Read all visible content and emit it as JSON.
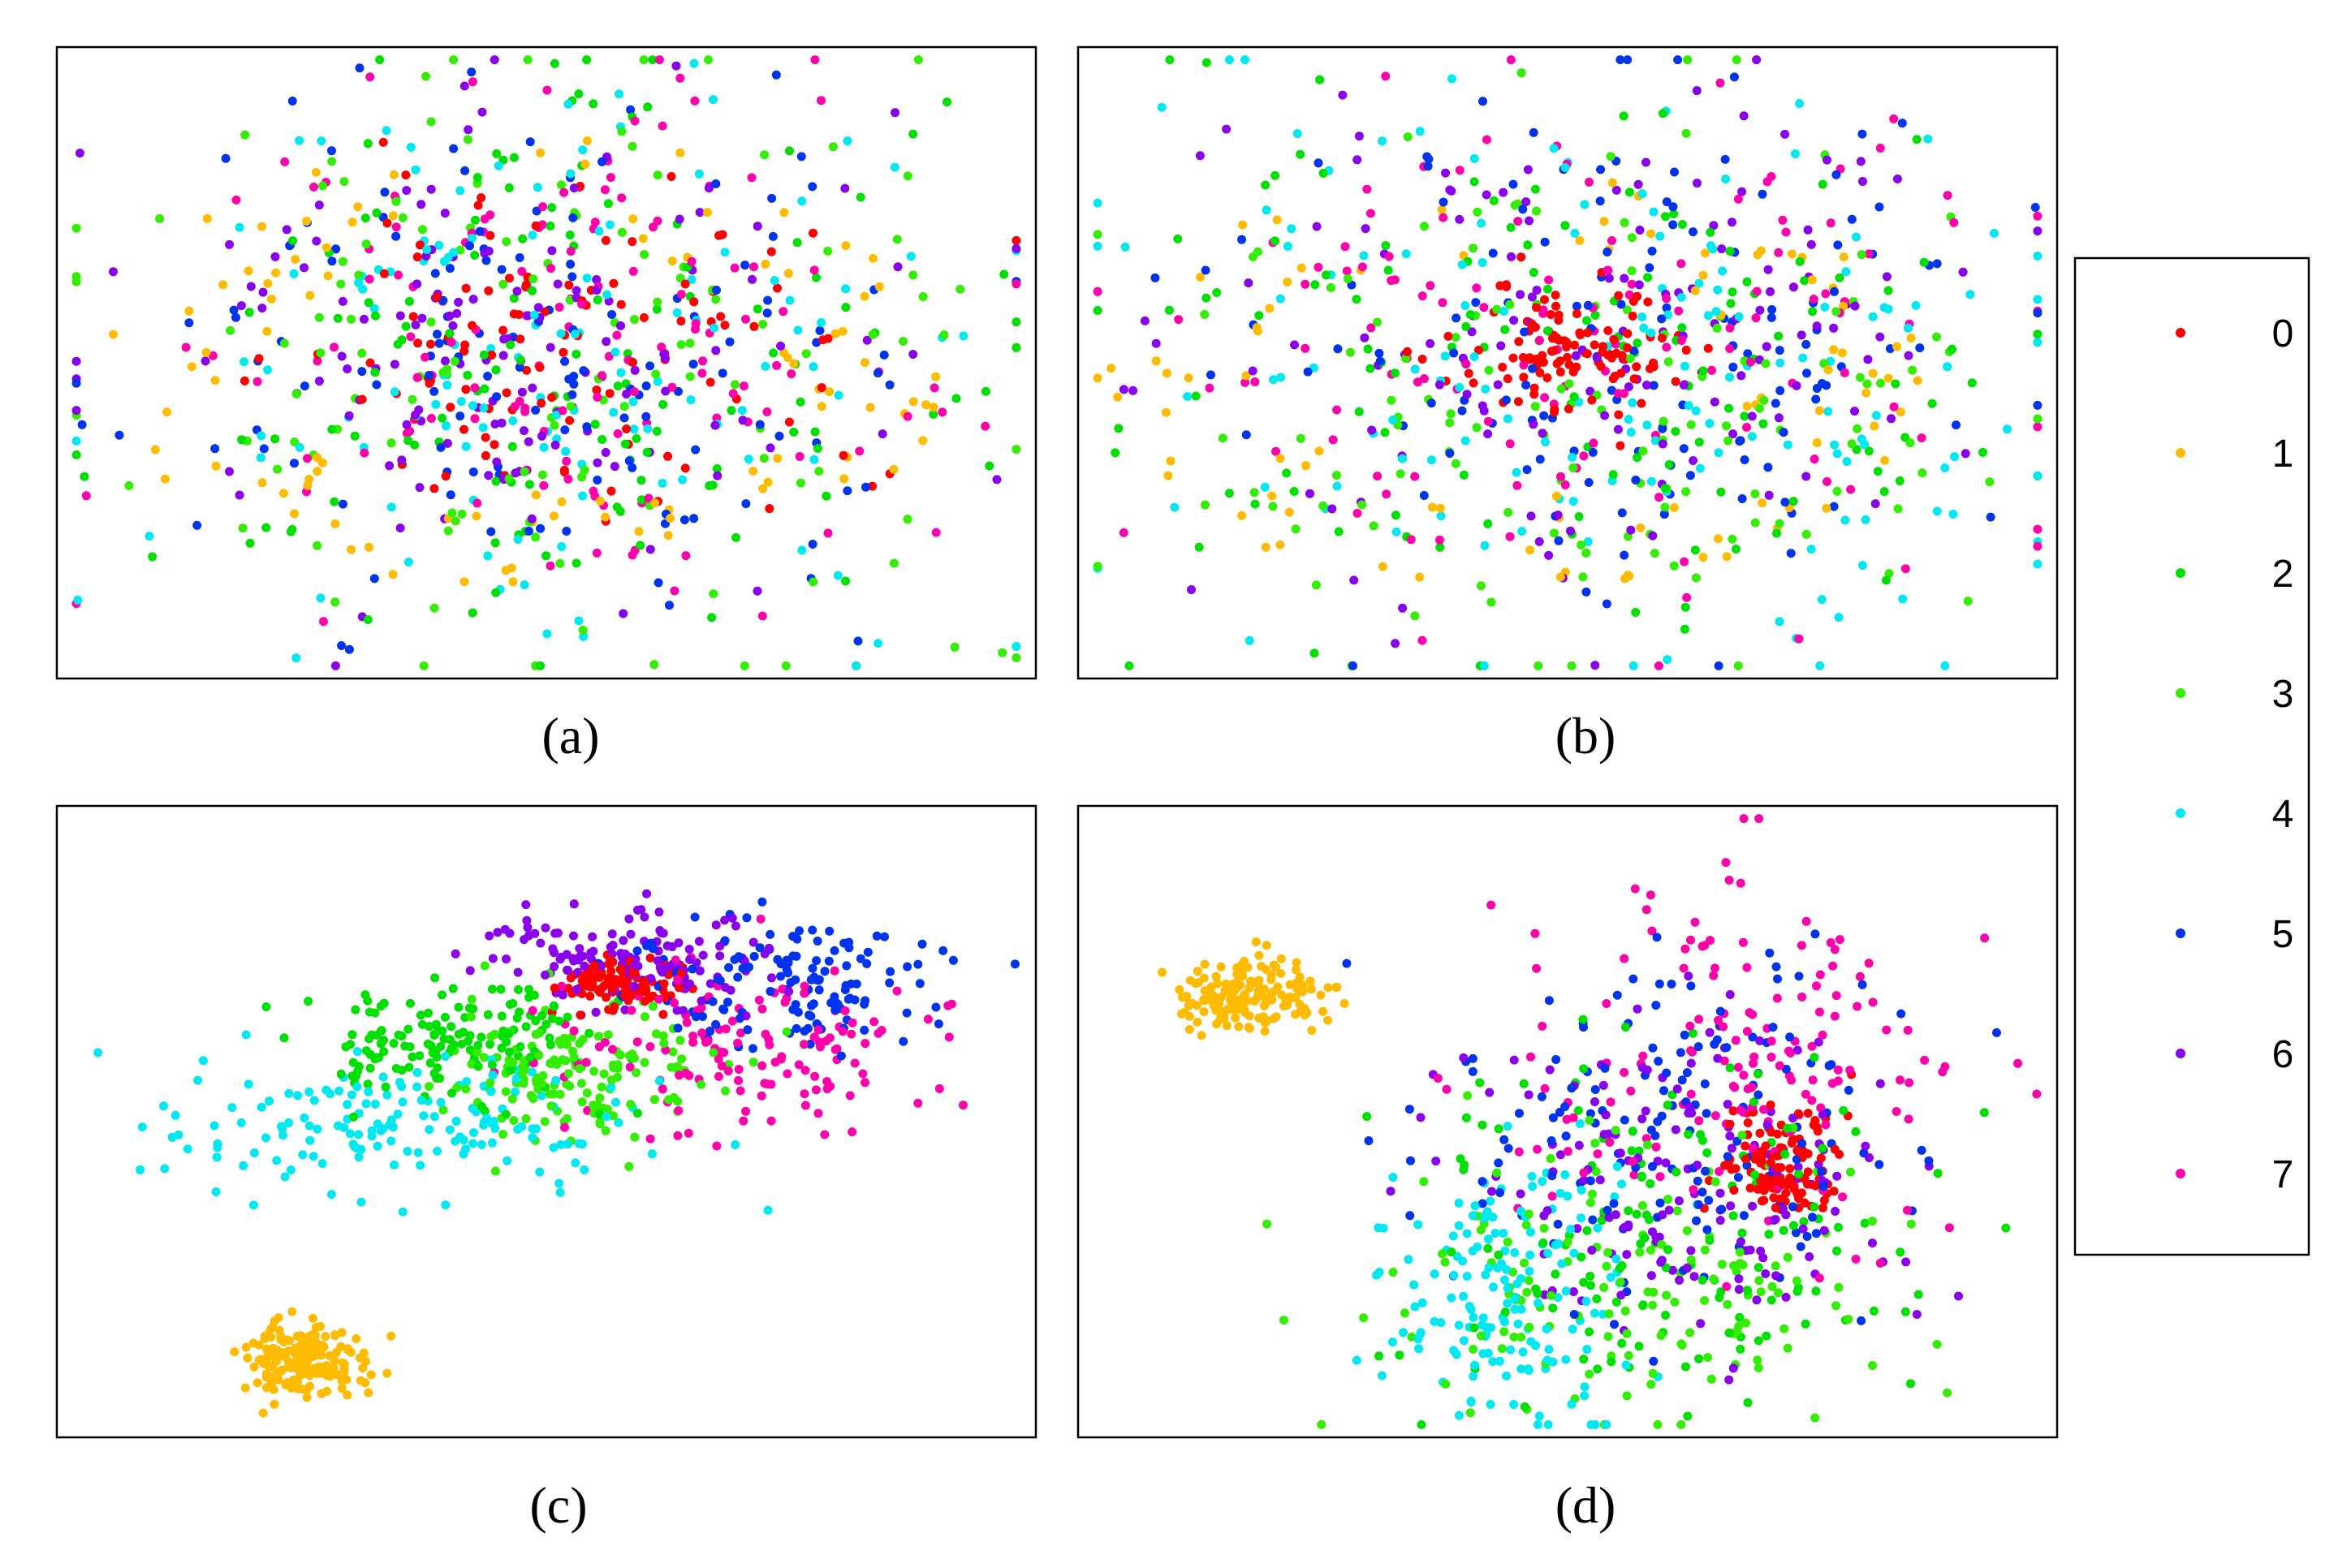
{
  "legend": {
    "placement": "right",
    "entries": [
      {
        "label": "0",
        "color": "#ff0000"
      },
      {
        "label": "1",
        "color": "#ffbb00"
      },
      {
        "label": "2",
        "color": "#00e000"
      },
      {
        "label": "3",
        "color": "#33ee00"
      },
      {
        "label": "4",
        "color": "#00e8f0"
      },
      {
        "label": "5",
        "color": "#0033ee"
      },
      {
        "label": "6",
        "color": "#8800ee"
      },
      {
        "label": "7",
        "color": "#ff00aa"
      }
    ]
  },
  "chart_data": [
    {
      "type": "scatter",
      "panel_label": "(a)",
      "axes_visible": false,
      "grid": false,
      "xlim": [
        0,
        100
      ],
      "ylim": [
        0,
        100
      ],
      "clusters": [
        {
          "class": "0",
          "center": [
            52,
            52
          ],
          "spread": [
            14,
            14
          ],
          "n": 110,
          "ring": false
        },
        {
          "class": "1",
          "center": [
            48,
            50
          ],
          "spread": [
            38,
            36
          ],
          "n": 95,
          "ring": true
        },
        {
          "class": "2",
          "center": [
            52,
            52
          ],
          "spread": [
            22,
            22
          ],
          "n": 130,
          "ring": false
        },
        {
          "class": "3",
          "center": [
            50,
            50
          ],
          "spread": [
            24,
            24
          ],
          "n": 130,
          "ring": false
        },
        {
          "class": "4",
          "center": [
            50,
            52
          ],
          "spread": [
            20,
            20
          ],
          "n": 130,
          "ring": false
        },
        {
          "class": "5",
          "center": [
            50,
            52
          ],
          "spread": [
            20,
            20
          ],
          "n": 140,
          "ring": false
        },
        {
          "class": "6",
          "center": [
            48,
            54
          ],
          "spread": [
            20,
            20
          ],
          "n": 140,
          "ring": false
        },
        {
          "class": "7",
          "center": [
            54,
            52
          ],
          "spread": [
            18,
            18
          ],
          "n": 140,
          "ring": false
        }
      ]
    },
    {
      "type": "scatter",
      "panel_label": "(b)",
      "axes_visible": false,
      "grid": false,
      "xlim": [
        0,
        100
      ],
      "ylim": [
        0,
        100
      ],
      "clusters": [
        {
          "class": "0",
          "center": [
            50,
            52
          ],
          "spread": [
            6,
            5
          ],
          "n": 110,
          "ring": false
        },
        {
          "class": "1",
          "center": [
            45,
            48
          ],
          "spread": [
            38,
            34
          ],
          "n": 85,
          "ring": true
        },
        {
          "class": "2",
          "center": [
            52,
            50
          ],
          "spread": [
            22,
            22
          ],
          "n": 130,
          "ring": false
        },
        {
          "class": "3",
          "center": [
            55,
            44
          ],
          "spread": [
            22,
            22
          ],
          "n": 130,
          "ring": false
        },
        {
          "class": "4",
          "center": [
            55,
            48
          ],
          "spread": [
            26,
            24
          ],
          "n": 150,
          "ring": false
        },
        {
          "class": "5",
          "center": [
            58,
            52
          ],
          "spread": [
            20,
            20
          ],
          "n": 140,
          "ring": false
        },
        {
          "class": "6",
          "center": [
            52,
            54
          ],
          "spread": [
            20,
            20
          ],
          "n": 140,
          "ring": false
        },
        {
          "class": "7",
          "center": [
            50,
            54
          ],
          "spread": [
            22,
            20
          ],
          "n": 130,
          "ring": false
        }
      ]
    },
    {
      "type": "scatter",
      "panel_label": "(c)",
      "axes_visible": false,
      "grid": false,
      "xlim": [
        0,
        100
      ],
      "ylim": [
        0,
        100
      ],
      "clusters": [
        {
          "class": "0",
          "center": [
            58,
            72
          ],
          "spread": [
            3,
            2
          ],
          "n": 120,
          "ring": false
        },
        {
          "class": "1",
          "center": [
            25,
            12
          ],
          "spread": [
            3,
            3
          ],
          "n": 180,
          "ring": false
        },
        {
          "class": "2",
          "center": [
            40,
            63
          ],
          "spread": [
            8,
            5
          ],
          "n": 150,
          "ring": false
        },
        {
          "class": "3",
          "center": [
            52,
            58
          ],
          "spread": [
            8,
            5
          ],
          "n": 150,
          "ring": false
        },
        {
          "class": "4",
          "center": [
            35,
            50
          ],
          "spread": [
            14,
            5
          ],
          "n": 160,
          "ring": false
        },
        {
          "class": "5",
          "center": [
            75,
            72
          ],
          "spread": [
            8,
            5
          ],
          "n": 140,
          "ring": false
        },
        {
          "class": "6",
          "center": [
            58,
            76
          ],
          "spread": [
            8,
            4
          ],
          "n": 140,
          "ring": false
        },
        {
          "class": "7",
          "center": [
            70,
            62
          ],
          "spread": [
            10,
            7
          ],
          "n": 140,
          "ring": false
        }
      ]
    },
    {
      "type": "scatter",
      "panel_label": "(d)",
      "axes_visible": false,
      "grid": false,
      "xlim": [
        0,
        100
      ],
      "ylim": [
        0,
        100
      ],
      "clusters": [
        {
          "class": "0",
          "center": [
            72,
            43
          ],
          "spread": [
            3,
            4
          ],
          "n": 120,
          "ring": false
        },
        {
          "class": "1",
          "center": [
            17,
            70
          ],
          "spread": [
            4,
            3
          ],
          "n": 170,
          "ring": false
        },
        {
          "class": "2",
          "center": [
            62,
            32
          ],
          "spread": [
            14,
            14
          ],
          "n": 140,
          "ring": false
        },
        {
          "class": "3",
          "center": [
            58,
            25
          ],
          "spread": [
            14,
            12
          ],
          "n": 140,
          "ring": false
        },
        {
          "class": "4",
          "center": [
            44,
            22
          ],
          "spread": [
            6,
            11
          ],
          "n": 160,
          "ring": false
        },
        {
          "class": "5",
          "center": [
            62,
            48
          ],
          "spread": [
            12,
            14
          ],
          "n": 150,
          "ring": false
        },
        {
          "class": "6",
          "center": [
            62,
            40
          ],
          "spread": [
            12,
            14
          ],
          "n": 150,
          "ring": false
        },
        {
          "class": "7",
          "center": [
            68,
            60
          ],
          "spread": [
            12,
            14
          ],
          "n": 150,
          "ring": false
        }
      ]
    }
  ]
}
